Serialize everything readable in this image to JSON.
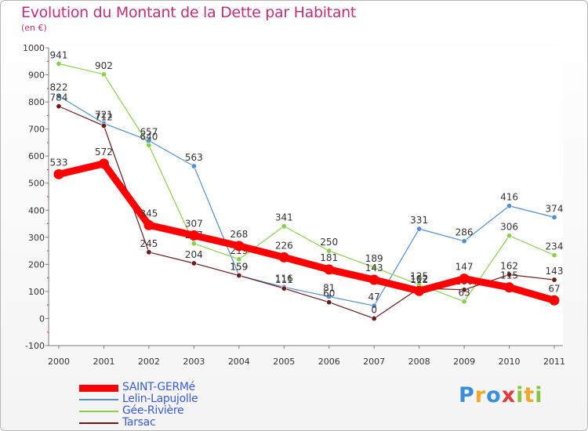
{
  "chart_data": {
    "type": "line",
    "title": "Evolution du Montant de la Dette par Habitant",
    "subtitle": "(en €)",
    "x": [
      "2000",
      "2001",
      "2002",
      "2003",
      "2004",
      "2005",
      "2006",
      "2007",
      "2008",
      "2009",
      "2010",
      "2011"
    ],
    "ylim": [
      -100,
      1000
    ],
    "yticks": [
      -100,
      0,
      100,
      200,
      300,
      400,
      500,
      600,
      700,
      800,
      900,
      1000
    ],
    "grid": false,
    "legend_position": "bottom-left",
    "series": [
      {
        "name": "SAINT-GERMé",
        "color": "#ff0000",
        "values": [
          533,
          572,
          345,
          307,
          268,
          226,
          181,
          143,
          102,
          147,
          115,
          67
        ]
      },
      {
        "name": "Lelin-Lapujolle",
        "color": "#4f8fd2",
        "values": [
          822,
          721,
          657,
          563,
          159,
          116,
          81,
          47,
          331,
          286,
          416,
          374
        ]
      },
      {
        "name": "Gée-Rivière",
        "color": "#88d24a",
        "values": [
          941,
          902,
          640,
          277,
          219,
          341,
          250,
          189,
          125,
          63,
          306,
          234
        ]
      },
      {
        "name": "Tarsac",
        "color": "#6b1a1a",
        "values": [
          784,
          712,
          245,
          204,
          159,
          111,
          60,
          0,
          112,
          106,
          162,
          143
        ]
      }
    ]
  },
  "brand": {
    "letters": [
      {
        "ch": "P",
        "color": "#3a8fd8"
      },
      {
        "ch": "r",
        "color": "#f2a62a"
      },
      {
        "ch": "o",
        "color": "#3a8fd8"
      },
      {
        "ch": "x",
        "color": "#e23a3a"
      },
      {
        "ch": "i",
        "color": "#88c440"
      },
      {
        "ch": "t",
        "color": "#f2a62a"
      },
      {
        "ch": "i",
        "color": "#88c440"
      }
    ]
  }
}
